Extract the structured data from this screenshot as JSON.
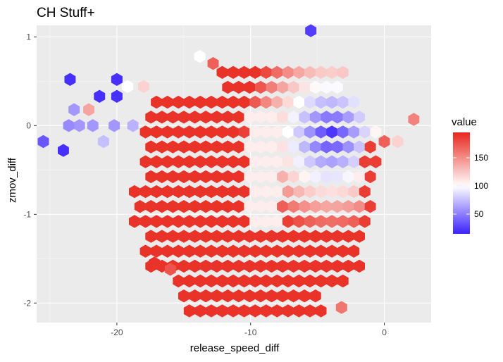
{
  "chart_data": {
    "type": "heatmap",
    "geom": "hexbin",
    "title": "CH Stuff+",
    "xlabel": "release_speed_diff",
    "ylabel": "zmov_diff",
    "xlim": [
      -26,
      3.5
    ],
    "ylim": [
      -2.22,
      1.13
    ],
    "xticks": [
      -20,
      -10,
      0
    ],
    "yticks": [
      1,
      0,
      -1,
      -2
    ],
    "xtick_labels": [
      "-20",
      "-10",
      "0"
    ],
    "ytick_labels": [
      "1",
      "0",
      "-1",
      "-2"
    ],
    "grid": true,
    "legend": {
      "title": "value",
      "position": "right",
      "range": [
        15,
        195
      ],
      "ticks": [
        50,
        100,
        150
      ],
      "tick_labels": [
        "50",
        "100",
        "150"
      ],
      "colors": {
        "low": "#3b22ff",
        "mid": "#ffffff",
        "high": "#e8271c"
      },
      "midpoint": 100
    },
    "model_note": "",
    "background": "#ebebeb",
    "cells": [
      [
        -5.5,
        1.07,
        25
      ],
      [
        -13.8,
        0.78,
        100
      ],
      [
        -12.8,
        0.7,
        170
      ],
      [
        -23.5,
        0.52,
        20
      ],
      [
        -20.0,
        0.52,
        20
      ],
      [
        -20.0,
        0.33,
        20
      ],
      [
        -21.3,
        0.33,
        20
      ],
      [
        -19.2,
        0.44,
        100
      ],
      [
        -18.0,
        0.44,
        120
      ],
      [
        -24.0,
        -0.28,
        20
      ],
      [
        -25.5,
        -0.18,
        35
      ],
      [
        -22.8,
        0.0,
        60
      ],
      [
        -23.6,
        0.0,
        55
      ],
      [
        -21.8,
        0.0,
        60
      ],
      [
        -21.0,
        -0.18,
        75
      ],
      [
        -23.2,
        0.18,
        60
      ],
      [
        -22.1,
        0.18,
        140
      ],
      [
        -20.2,
        0.0,
        60
      ],
      [
        -18.8,
        0.0,
        70
      ],
      [
        2.2,
        0.07,
        155
      ],
      [
        1.0,
        -0.18,
        120
      ],
      [
        0.0,
        -0.18,
        170
      ],
      [
        -17.2,
        -1.55,
        190
      ],
      [
        -16.0,
        -1.62,
        175
      ],
      [
        -3.2,
        -2.05,
        160
      ]
    ],
    "field_model": {
      "center": [
        -4.0,
        -0.1
      ],
      "cold_value": 18,
      "hot_value": 190,
      "white_band": -9
    }
  }
}
